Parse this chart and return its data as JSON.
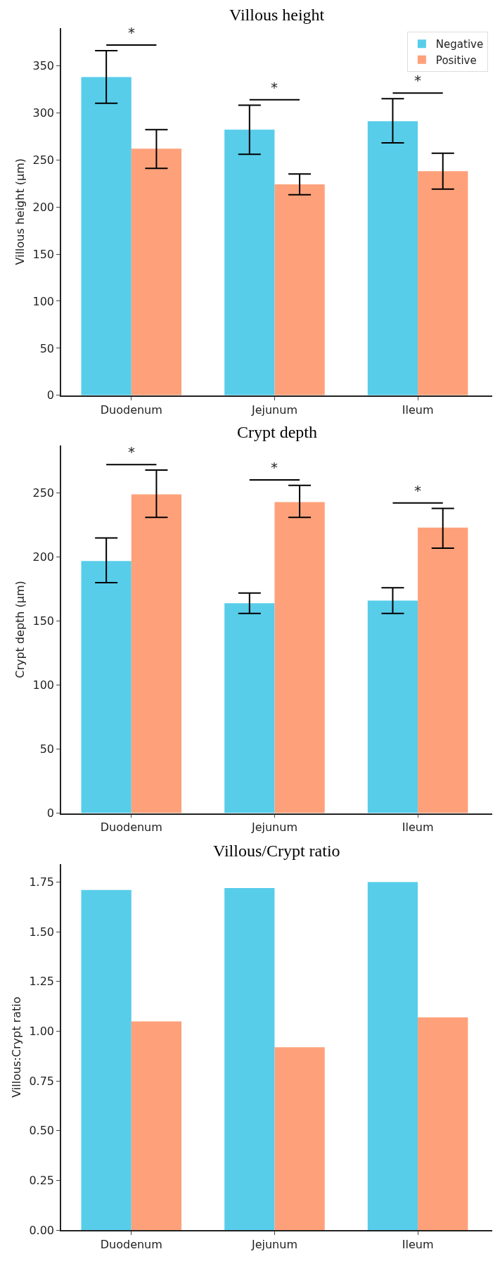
{
  "chart_data": [
    {
      "type": "bar",
      "title": "Villous height",
      "ylabel": "Villous height (µm)",
      "categories": [
        "Duodenum",
        "Jejunum",
        "Ileum"
      ],
      "series": [
        {
          "name": "Negative",
          "color": "#57cdea",
          "values": [
            338,
            282,
            291
          ],
          "errors": [
            [
              310,
              366
            ],
            [
              256,
              308
            ],
            [
              268,
              315
            ]
          ]
        },
        {
          "name": "Positive",
          "color": "#fea17a",
          "values": [
            262,
            224,
            238
          ],
          "errors": [
            [
              241,
              282
            ],
            [
              213,
              235
            ],
            [
              219,
              257
            ]
          ]
        }
      ],
      "ylim": [
        0,
        390
      ],
      "yticks": [
        0,
        50,
        100,
        150,
        200,
        250,
        300,
        350
      ],
      "legend": "top right",
      "annotations": [
        "*",
        "*",
        "*"
      ]
    },
    {
      "type": "bar",
      "title": "Crypt depth",
      "ylabel": "Crypt depth (µm)",
      "categories": [
        "Duodenum",
        "Jejunum",
        "Ileum"
      ],
      "series": [
        {
          "color": "#57cdea",
          "values": [
            197,
            164,
            166
          ],
          "errors": [
            [
              180,
              215
            ],
            [
              156,
              172
            ],
            [
              156,
              176
            ]
          ]
        },
        {
          "color": "#fea17a",
          "values": [
            249,
            243,
            223
          ],
          "errors": [
            [
              231,
              268
            ],
            [
              231,
              256
            ],
            [
              207,
              238
            ]
          ]
        }
      ],
      "ylim": [
        0,
        287
      ],
      "yticks": [
        0,
        50,
        100,
        150,
        200,
        250
      ],
      "annotations": [
        "*",
        "*",
        "*"
      ]
    },
    {
      "type": "bar",
      "title": "Villous/Crypt ratio",
      "ylabel": "Villous:Crypt ratio",
      "categories": [
        "Duodenum",
        "Jejunum",
        "Ileum"
      ],
      "series": [
        {
          "color": "#57cdea",
          "values": [
            1.71,
            1.72,
            1.75
          ]
        },
        {
          "color": "#fea17a",
          "values": [
            1.05,
            0.92,
            1.07
          ]
        }
      ],
      "ylim": [
        0,
        1.84
      ],
      "yticks": [
        {
          "value": 0,
          "label": "0.00"
        },
        {
          "value": 0.25,
          "label": "0.25"
        },
        {
          "value": 0.5,
          "label": "0.50"
        },
        {
          "value": 0.75,
          "label": "0.75"
        },
        {
          "value": 1,
          "label": "1.00"
        },
        {
          "value": 1.25,
          "label": "1.25"
        },
        {
          "value": 1.5,
          "label": "1.50"
        },
        {
          "value": 1.75,
          "label": "1.75"
        }
      ]
    }
  ]
}
